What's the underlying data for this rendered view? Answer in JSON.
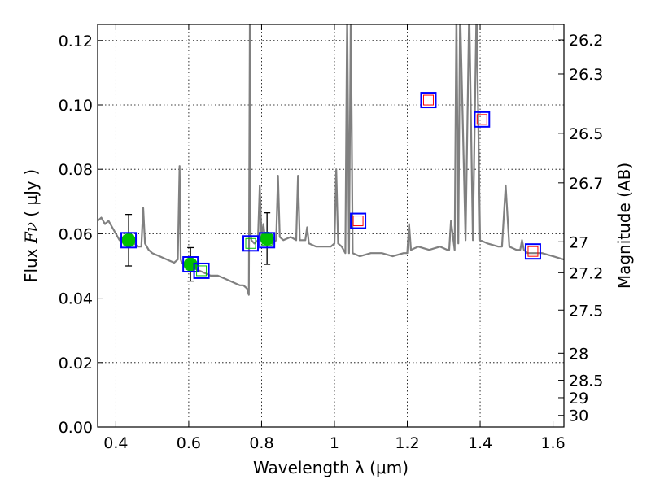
{
  "chart_data": {
    "type": "line",
    "xlabel": "Wavelength  λ (μm)",
    "ylabel_parts": {
      "prefix": "Flux  ",
      "symbol": "Fν",
      "suffix": "  ( μJy )"
    },
    "y2label": "Magnitude (AB)",
    "xlim": [
      0.35,
      1.63
    ],
    "ylim": [
      0.0,
      0.125
    ],
    "grid": true,
    "x_ticks": [
      0.4,
      0.6,
      0.8,
      1.0,
      1.2,
      1.4,
      1.6
    ],
    "x_tick_labels": [
      "0.4",
      "0.6",
      "0.8",
      "1",
      "1.2",
      "1.4",
      "1.6"
    ],
    "y_ticks": [
      0.0,
      0.02,
      0.04,
      0.06,
      0.08,
      0.1,
      0.12
    ],
    "y_tick_labels": [
      "0.00",
      "0.02",
      "0.04",
      "0.06",
      "0.08",
      "0.10",
      "0.12"
    ],
    "y2_ticks": [
      {
        "label": "26.2",
        "flux": 0.1202
      },
      {
        "label": "26.3",
        "flux": 0.1096
      },
      {
        "label": "26.5",
        "flux": 0.0912
      },
      {
        "label": "26.7",
        "flux": 0.0758
      },
      {
        "label": "27",
        "flux": 0.0575
      },
      {
        "label": "27.2",
        "flux": 0.0479
      },
      {
        "label": "27.5",
        "flux": 0.0363
      },
      {
        "label": "28",
        "flux": 0.0229
      },
      {
        "label": "28.5",
        "flux": 0.0145
      },
      {
        "label": "29",
        "flux": 0.0091
      },
      {
        "label": "30",
        "flux": 0.0036
      }
    ],
    "series": [
      {
        "type": "line",
        "color": "#808080",
        "x": [
          0.35,
          0.36,
          0.37,
          0.38,
          0.39,
          0.4,
          0.41,
          0.42,
          0.43,
          0.44,
          0.45,
          0.46,
          0.47,
          0.475,
          0.48,
          0.485,
          0.49,
          0.5,
          0.52,
          0.54,
          0.56,
          0.57,
          0.575,
          0.578,
          0.581,
          0.59,
          0.6,
          0.62,
          0.64,
          0.66,
          0.68,
          0.7,
          0.72,
          0.74,
          0.75,
          0.76,
          0.765,
          0.768,
          0.77,
          0.772,
          0.78,
          0.79,
          0.795,
          0.8,
          0.805,
          0.81,
          0.83,
          0.84,
          0.845,
          0.85,
          0.86,
          0.88,
          0.895,
          0.9,
          0.905,
          0.92,
          0.925,
          0.93,
          0.95,
          0.97,
          0.99,
          1.0,
          1.005,
          1.01,
          1.02,
          1.03,
          1.035,
          1.04,
          1.045,
          1.05,
          1.07,
          1.1,
          1.13,
          1.16,
          1.19,
          1.2,
          1.205,
          1.21,
          1.23,
          1.26,
          1.29,
          1.31,
          1.315,
          1.32,
          1.33,
          1.335,
          1.34,
          1.345,
          1.36,
          1.37,
          1.38,
          1.39,
          1.4,
          1.42,
          1.45,
          1.46,
          1.47,
          1.48,
          1.5,
          1.51,
          1.515,
          1.52,
          1.53,
          1.54,
          1.55,
          1.57,
          1.6,
          1.63
        ],
        "y": [
          0.064,
          0.065,
          0.063,
          0.064,
          0.062,
          0.06,
          0.058,
          0.059,
          0.057,
          0.058,
          0.057,
          0.056,
          0.056,
          0.068,
          0.057,
          0.056,
          0.055,
          0.054,
          0.053,
          0.052,
          0.051,
          0.052,
          0.081,
          0.052,
          0.051,
          0.05,
          0.05,
          0.049,
          0.048,
          0.047,
          0.047,
          0.046,
          0.045,
          0.044,
          0.044,
          0.043,
          0.041,
          0.13,
          0.06,
          0.058,
          0.057,
          0.058,
          0.075,
          0.059,
          0.063,
          0.058,
          0.057,
          0.058,
          0.078,
          0.059,
          0.058,
          0.059,
          0.058,
          0.078,
          0.058,
          0.058,
          0.062,
          0.057,
          0.056,
          0.056,
          0.056,
          0.057,
          0.08,
          0.057,
          0.056,
          0.054,
          0.13,
          0.054,
          0.13,
          0.054,
          0.053,
          0.054,
          0.054,
          0.053,
          0.054,
          0.054,
          0.063,
          0.055,
          0.056,
          0.055,
          0.056,
          0.055,
          0.055,
          0.064,
          0.055,
          0.13,
          0.057,
          0.13,
          0.058,
          0.13,
          0.058,
          0.13,
          0.058,
          0.057,
          0.056,
          0.056,
          0.075,
          0.056,
          0.055,
          0.055,
          0.058,
          0.055,
          0.054,
          0.054,
          0.054,
          0.054,
          0.053,
          0.052
        ]
      },
      {
        "type": "points",
        "marker": "circle",
        "color": "#00c000",
        "x": [
          0.435,
          0.605,
          0.815
        ],
        "y": [
          0.058,
          0.0505,
          0.0585
        ],
        "err": [
          0.008,
          0.0052,
          0.008
        ]
      },
      {
        "type": "points",
        "marker": "square-open",
        "edge_color": "#0000ff",
        "inner_color": "#00c000",
        "x": [
          0.435,
          0.605,
          0.635,
          0.77,
          0.815
        ],
        "y": [
          0.058,
          0.0505,
          0.0485,
          0.057,
          0.058
        ]
      },
      {
        "type": "points",
        "marker": "square-open",
        "edge_color": "#0000ff",
        "inner_color": "#ff0000",
        "x": [
          1.065,
          1.258,
          1.405,
          1.545
        ],
        "y": [
          0.064,
          0.1015,
          0.0955,
          0.0545
        ]
      }
    ]
  }
}
